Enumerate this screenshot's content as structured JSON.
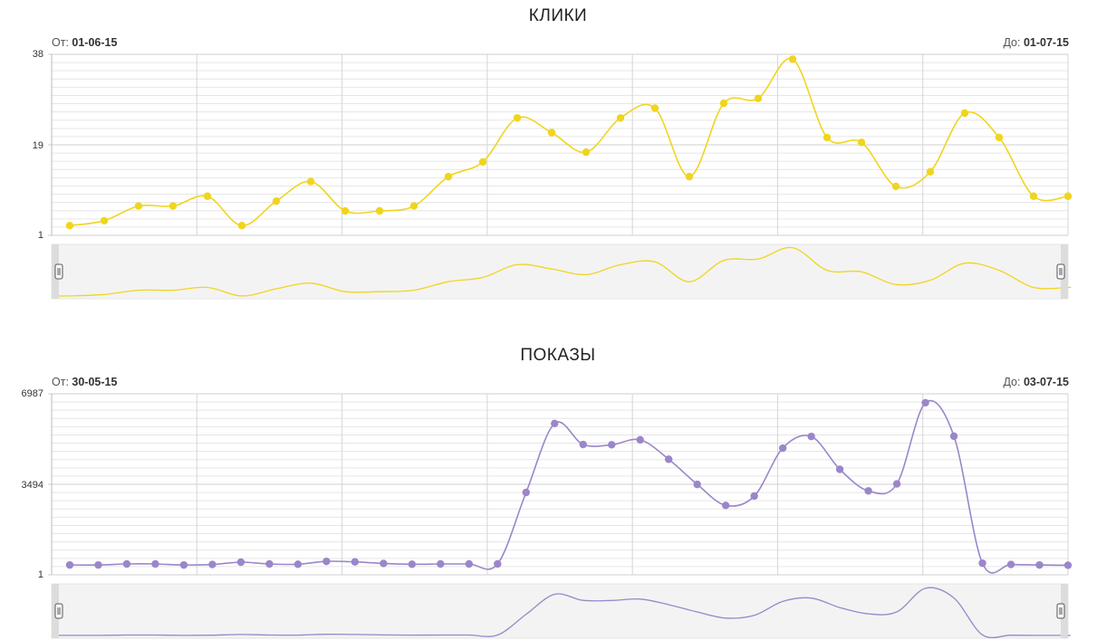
{
  "chart_data": [
    {
      "type": "line",
      "title": "КЛИКИ",
      "range": {
        "from_label": "От:",
        "from_value": "01-06-15",
        "to_label": "До:",
        "to_value": "01-07-15"
      },
      "ylim": [
        1,
        38
      ],
      "y_ticks": [
        "38",
        "19",
        "1"
      ],
      "grid": true,
      "color": "#f0d51e",
      "series": [
        {
          "values": [
            3,
            4,
            7,
            7,
            9,
            3,
            8,
            12,
            6,
            6,
            7,
            13,
            16,
            25,
            22,
            18,
            25,
            27,
            13,
            28,
            29,
            37,
            21,
            20,
            11,
            14,
            26,
            21,
            9,
            9
          ]
        }
      ]
    },
    {
      "type": "line",
      "title": "ПОКАЗЫ",
      "range": {
        "from_label": "От:",
        "from_value": "30-05-15",
        "to_label": "До:",
        "to_value": "03-07-15"
      },
      "ylim": [
        1,
        6987
      ],
      "y_ticks": [
        "6987",
        "3494",
        "1"
      ],
      "grid": true,
      "color": "#9b86c9",
      "series": [
        {
          "values": [
            380,
            380,
            420,
            420,
            380,
            400,
            490,
            420,
            410,
            520,
            500,
            440,
            410,
            420,
            420,
            420,
            3180,
            5840,
            5030,
            5020,
            5210,
            4460,
            3490,
            2680,
            3040,
            4890,
            5340,
            4070,
            3240,
            3510,
            6640,
            5350,
            450,
            400,
            380,
            370
          ]
        }
      ]
    }
  ]
}
